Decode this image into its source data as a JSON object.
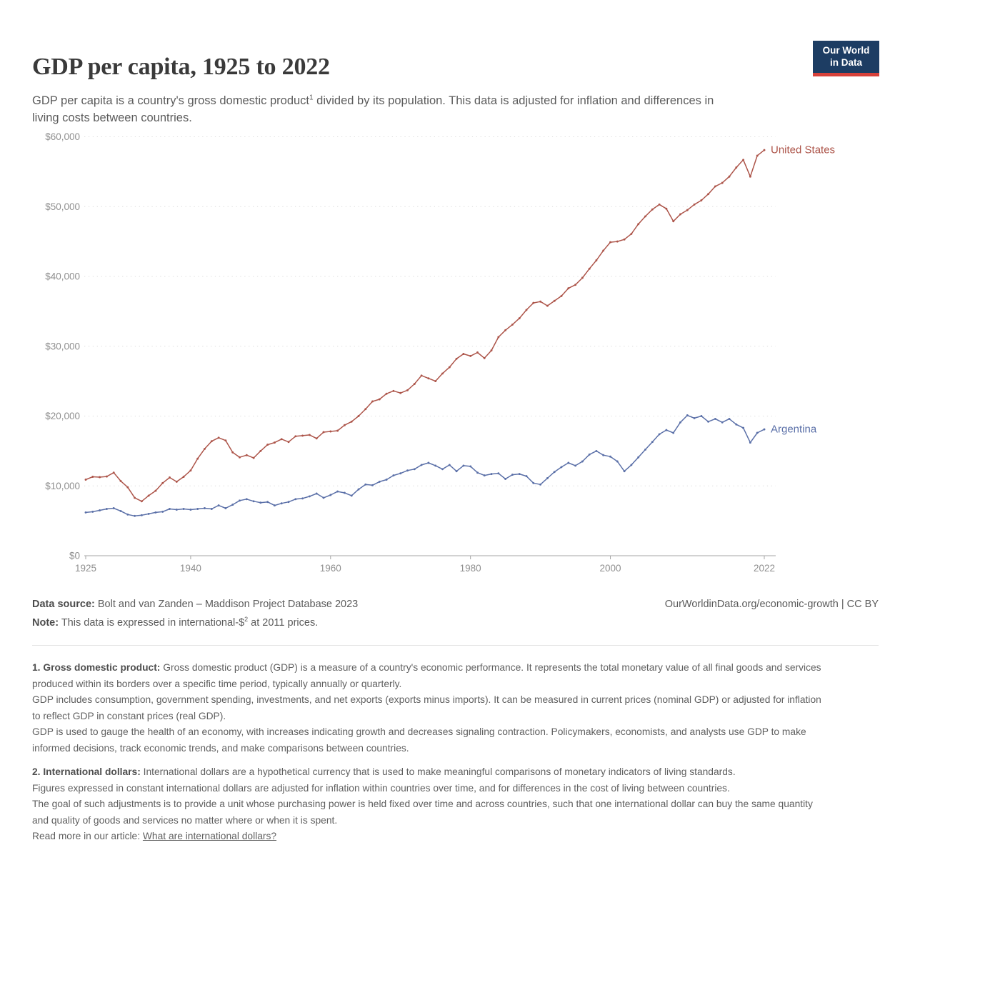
{
  "header": {
    "title": "GDP per capita, 1925 to 2022",
    "subtitle_before_sup": "GDP per capita is a country's gross domestic product",
    "subtitle_sup": "1",
    "subtitle_after_sup": " divided by its population. This data is adjusted for inflation and differences in living costs between countries."
  },
  "logo": {
    "line1": "Our World",
    "line2": "in Data",
    "bg_color": "#1d3d63",
    "underline_color": "#d7413a"
  },
  "chart_data": {
    "type": "line",
    "title": "GDP per capita, 1925 to 2022",
    "xlabel": "",
    "ylabel": "",
    "ylim": [
      0,
      60000
    ],
    "yticks": [
      0,
      10000,
      20000,
      30000,
      40000,
      50000,
      60000
    ],
    "ytick_labels": [
      "$0",
      "$10,000",
      "$20,000",
      "$30,000",
      "$40,000",
      "$50,000",
      "$60,000"
    ],
    "xticks": [
      1925,
      1940,
      1960,
      1980,
      2000,
      2022
    ],
    "grid": "horizontal-dotted",
    "legend_position": "end-of-line",
    "axis_color": "#a6a6a6",
    "grid_color": "#dcdcdc",
    "tick_label_color": "#8f8f8f",
    "years": [
      1925,
      1926,
      1927,
      1928,
      1929,
      1930,
      1931,
      1932,
      1933,
      1934,
      1935,
      1936,
      1937,
      1938,
      1939,
      1940,
      1941,
      1942,
      1943,
      1944,
      1945,
      1946,
      1947,
      1948,
      1949,
      1950,
      1951,
      1952,
      1953,
      1954,
      1955,
      1956,
      1957,
      1958,
      1959,
      1960,
      1961,
      1962,
      1963,
      1964,
      1965,
      1966,
      1967,
      1968,
      1969,
      1970,
      1971,
      1972,
      1973,
      1974,
      1975,
      1976,
      1977,
      1978,
      1979,
      1980,
      1981,
      1982,
      1983,
      1984,
      1985,
      1986,
      1987,
      1988,
      1989,
      1990,
      1991,
      1992,
      1993,
      1994,
      1995,
      1996,
      1997,
      1998,
      1999,
      2000,
      2001,
      2002,
      2003,
      2004,
      2005,
      2006,
      2007,
      2008,
      2009,
      2010,
      2011,
      2012,
      2013,
      2014,
      2015,
      2016,
      2017,
      2018,
      2019,
      2020,
      2021,
      2022
    ],
    "series": [
      {
        "name": "United States",
        "color": "#ad554a",
        "values": [
          10900,
          11300,
          11250,
          11350,
          11900,
          10700,
          9800,
          8300,
          7800,
          8600,
          9300,
          10400,
          11200,
          10600,
          11300,
          12200,
          13900,
          15300,
          16400,
          16900,
          16500,
          14800,
          14100,
          14400,
          14000,
          15000,
          15900,
          16200,
          16700,
          16300,
          17100,
          17200,
          17300,
          16800,
          17700,
          17800,
          17900,
          18700,
          19200,
          20000,
          21000,
          22100,
          22400,
          23200,
          23600,
          23300,
          23700,
          24600,
          25800,
          25400,
          25000,
          26100,
          27000,
          28200,
          28900,
          28600,
          29100,
          28300,
          29400,
          31300,
          32300,
          33100,
          34000,
          35200,
          36200,
          36400,
          35800,
          36500,
          37200,
          38300,
          38800,
          39800,
          41100,
          42300,
          43700,
          44900,
          45000,
          45300,
          46100,
          47500,
          48600,
          49600,
          50300,
          49700,
          47900,
          48900,
          49500,
          50300,
          50900,
          51800,
          52900,
          53400,
          54300,
          55600,
          56700,
          54300,
          57300,
          58100
        ]
      },
      {
        "name": "Argentina",
        "color": "#5b70a8",
        "values": [
          6200,
          6300,
          6500,
          6700,
          6800,
          6400,
          5900,
          5700,
          5800,
          6000,
          6200,
          6300,
          6700,
          6600,
          6700,
          6600,
          6700,
          6800,
          6700,
          7200,
          6800,
          7300,
          7900,
          8100,
          7800,
          7600,
          7700,
          7200,
          7500,
          7700,
          8100,
          8200,
          8500,
          8900,
          8300,
          8700,
          9200,
          9000,
          8600,
          9500,
          10200,
          10100,
          10600,
          10900,
          11500,
          11800,
          12200,
          12400,
          13000,
          13300,
          12900,
          12400,
          13000,
          12100,
          12900,
          12800,
          11900,
          11500,
          11700,
          11800,
          11000,
          11600,
          11700,
          11400,
          10400,
          10200,
          11100,
          12000,
          12700,
          13300,
          12900,
          13500,
          14500,
          15000,
          14400,
          14200,
          13500,
          12100,
          13000,
          14100,
          15200,
          16300,
          17400,
          18000,
          17600,
          19100,
          20100,
          19700,
          20000,
          19200,
          19600,
          19100,
          19600,
          18800,
          18300,
          16200,
          17600,
          18100
        ]
      }
    ]
  },
  "footer": {
    "data_source_label": "Data source:",
    "data_source": " Bolt and van Zanden – Maddison Project Database 2023",
    "attribution": "OurWorldinData.org/economic-growth | CC BY",
    "note_label": "Note:",
    "note_before_sup": " This data is expressed in international-$",
    "note_sup": "2",
    "note_after_sup": " at 2011 prices."
  },
  "footnotes": [
    {
      "label": "1. Gross domestic product:",
      "paragraphs": [
        "Gross domestic product (GDP) is a measure of a country's economic performance. It represents the total monetary value of all final goods and services produced within its borders over a specific time period, typically annually or quarterly.",
        "GDP includes consumption, government spending, investments, and net exports (exports minus imports). It can be measured in current prices (nominal GDP) or adjusted for inflation to reflect GDP in constant prices (real GDP).",
        "GDP is used to gauge the health of an economy, with increases indicating growth and decreases signaling contraction. Policymakers, economists, and analysts use GDP to make informed decisions, track economic trends, and make comparisons between countries."
      ]
    },
    {
      "label": "2. International dollars:",
      "paragraphs": [
        "International dollars are a hypothetical currency that is used to make meaningful comparisons of monetary indicators of living standards.",
        "Figures expressed in constant international dollars are adjusted for inflation within countries over time, and for differences in the cost of living between countries.",
        "The goal of such adjustments is to provide a unit whose purchasing power is held fixed over time and across countries, such that one international dollar can buy the same quantity and quality of goods and services no matter where or when it is spent."
      ],
      "read_more_prefix": "Read more in our article: ",
      "read_more_link": "What are international dollars?"
    }
  ]
}
